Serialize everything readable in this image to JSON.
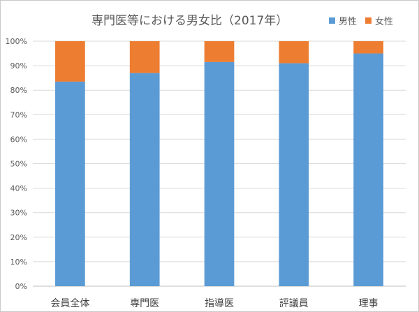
{
  "chart_data": {
    "type": "bar",
    "stacked": true,
    "title": "専門医等における男女比（2017年）",
    "categories": [
      "会員全体",
      "専門医",
      "指導医",
      "評議員",
      "理事"
    ],
    "series": [
      {
        "name": "男性",
        "color": "#5b9bd5",
        "values": [
          83.5,
          87.0,
          91.5,
          91.0,
          95.0
        ]
      },
      {
        "name": "女性",
        "color": "#ed7d31",
        "values": [
          16.5,
          13.0,
          8.5,
          9.0,
          5.0
        ]
      }
    ],
    "ylim": [
      0,
      100
    ],
    "yticks": [
      "0%",
      "10%",
      "20%",
      "30%",
      "40%",
      "50%",
      "60%",
      "70%",
      "80%",
      "90%",
      "100%"
    ],
    "grid": true,
    "legend_position": "top-right"
  }
}
